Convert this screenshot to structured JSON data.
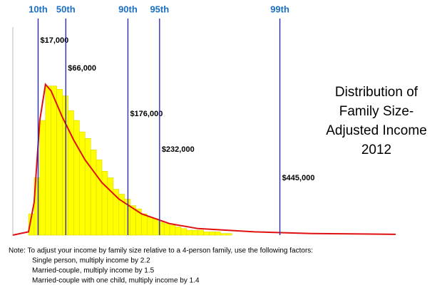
{
  "chart_data": {
    "type": "histogram",
    "title_lines": [
      "Distribution of",
      "Family Size-",
      "Adjusted Income",
      "2012"
    ],
    "bins": [
      0,
      10000,
      20000,
      30000,
      40000,
      50000,
      60000,
      70000,
      80000,
      90000,
      100000,
      110000,
      120000,
      130000,
      140000,
      150000,
      160000,
      170000,
      180000,
      190000,
      200000,
      210000,
      220000,
      230000,
      240000,
      250000,
      260000,
      270000,
      280000,
      290000,
      300000,
      310000,
      320000,
      330000,
      340000,
      350000,
      360000
    ],
    "values": [
      13,
      35,
      70,
      91,
      91,
      89,
      85,
      76,
      70,
      63,
      59,
      52,
      46,
      39,
      35,
      28,
      25,
      22,
      18,
      16,
      13,
      11,
      10,
      8,
      7,
      6,
      5,
      4,
      3,
      3,
      3,
      2,
      2,
      2,
      1,
      1
    ],
    "color": "#ffff00",
    "curve": {
      "color": "#e01010",
      "x": [
        -28000,
        0,
        10000,
        20000,
        30000,
        40000,
        60000,
        80000,
        100000,
        130000,
        160000,
        200000,
        250000,
        300000,
        400000,
        500000,
        650000
      ],
      "values": [
        0,
        2,
        20,
        70,
        92,
        88,
        72,
        58,
        46,
        32,
        22,
        13,
        7,
        4,
        2,
        1,
        0.5
      ]
    },
    "percentiles": {
      "color": "#2020c0",
      "label_color": "#1a6fc4",
      "labels": [
        "10th",
        "50th",
        "90th",
        "95th",
        "99th"
      ],
      "values": [
        17000,
        66000,
        176000,
        232000,
        445000
      ],
      "value_labels": [
        "$17,000",
        "$66,000",
        "$176,000",
        "$232,000",
        "$445,000"
      ]
    },
    "xlim": [
      0,
      650000
    ],
    "ylim": [
      0,
      100
    ],
    "note_lines": [
      "Note:  To adjust your income by family size relative to a 4-person family, use the following factors:",
      "Single person, multiply income by 2.2",
      "Married-couple, multiply income by 1.5",
      "Married-couple with one child, multiply income by 1.4"
    ]
  }
}
